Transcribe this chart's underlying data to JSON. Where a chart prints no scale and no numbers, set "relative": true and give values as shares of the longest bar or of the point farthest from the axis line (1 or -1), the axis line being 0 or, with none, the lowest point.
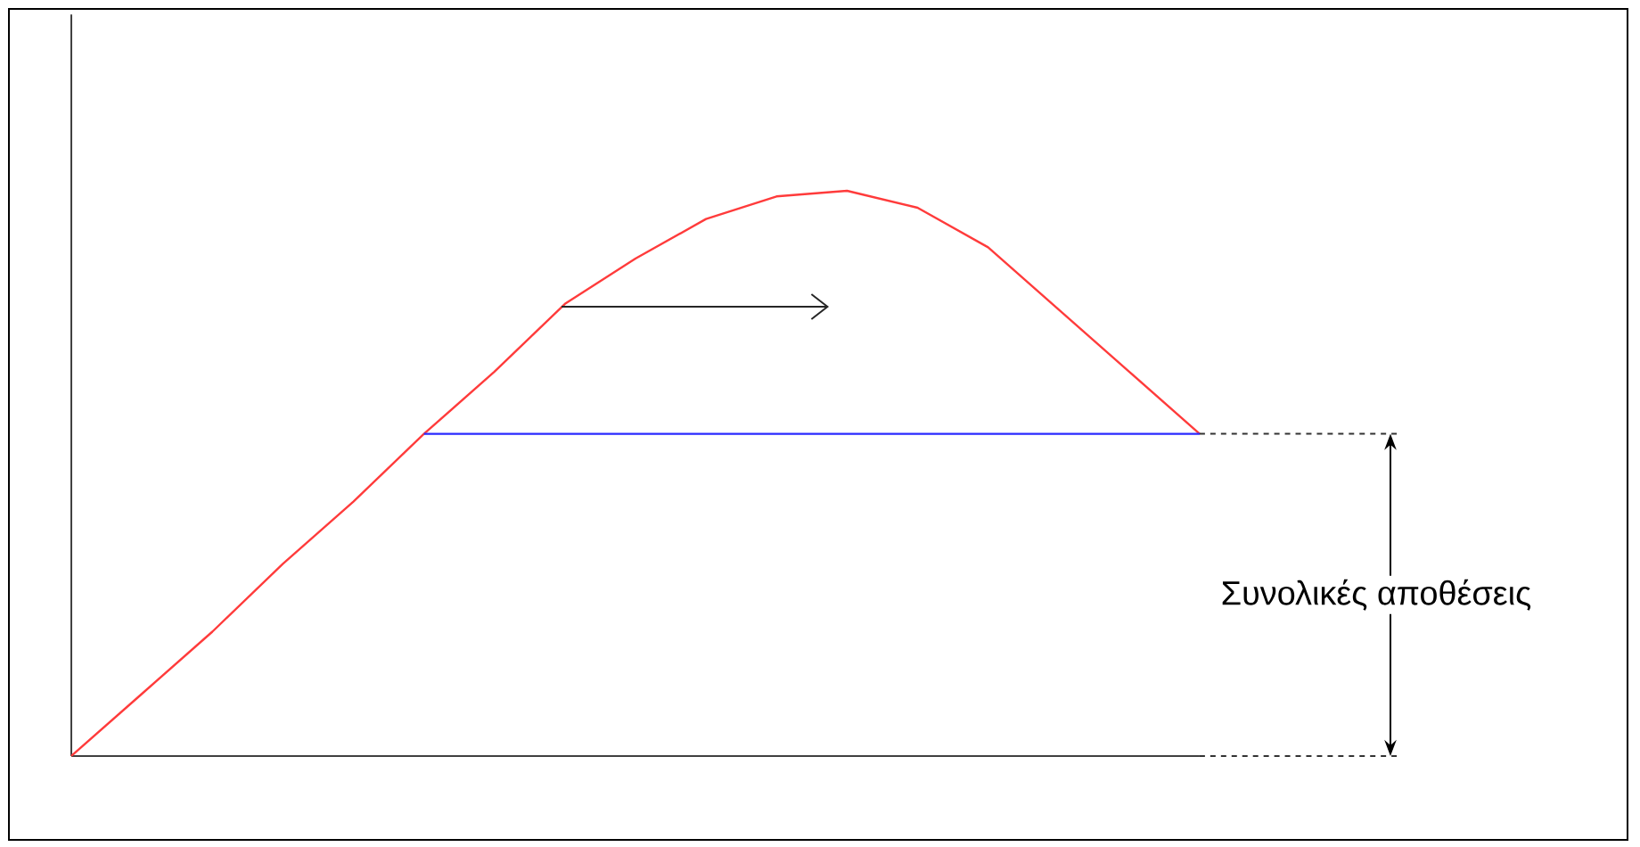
{
  "chart_data": {
    "type": "line",
    "relative": true,
    "categories": [
      null,
      null,
      null,
      null,
      null,
      null,
      null,
      null,
      null,
      null,
      null,
      null,
      null,
      null,
      null,
      null,
      null
    ],
    "series": [
      {
        "color": "#ff3b3b",
        "values": [
          0,
          0.11,
          0.22,
          0.34,
          0.45,
          0.57,
          0.68,
          0.8,
          0.88,
          0.95,
          0.99,
          1.0,
          0.97,
          0.9,
          0.79,
          0.68,
          0.57
        ]
      },
      {
        "color": "#2a2aff",
        "values": [
          null,
          null,
          null,
          null,
          null,
          0.57,
          0.57,
          0.57,
          0.57,
          0.57,
          0.57,
          0.57,
          0.57,
          0.57,
          0.57,
          0.57,
          0.57
        ]
      }
    ],
    "annotations": [
      "Συνολικές αποθέσεις"
    ]
  }
}
